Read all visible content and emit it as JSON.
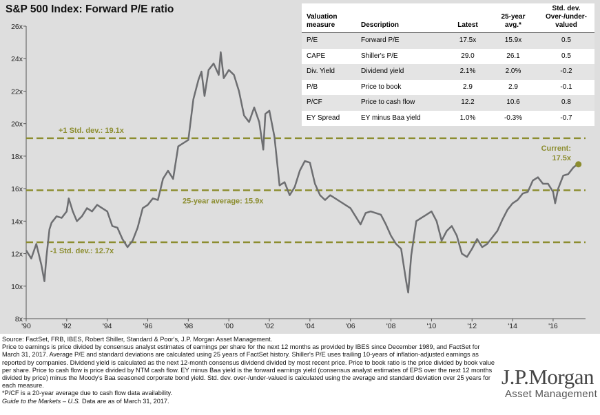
{
  "chart_data": {
    "type": "line",
    "title": "S&P 500 Index: Forward P/E ratio",
    "ylim": [
      8,
      26
    ],
    "xlim": [
      1990,
      2017.6
    ],
    "y_ticks": [
      "8x",
      "10x",
      "12x",
      "14x",
      "16x",
      "18x",
      "20x",
      "22x",
      "24x",
      "26x"
    ],
    "x_ticks": [
      "'90",
      "'92",
      "'94",
      "'96",
      "'98",
      "'00",
      "'02",
      "'04",
      "'06",
      "'08",
      "'10",
      "'12",
      "'14",
      "'16"
    ],
    "series": [
      {
        "color": "#6d6e71",
        "x": [
          1990.0,
          1990.25,
          1990.5,
          1990.75,
          1990.9,
          1991.0,
          1991.15,
          1991.25,
          1991.5,
          1991.75,
          1992.0,
          1992.1,
          1992.3,
          1992.5,
          1992.75,
          1993.0,
          1993.25,
          1993.5,
          1993.75,
          1994.0,
          1994.25,
          1994.5,
          1994.75,
          1995.0,
          1995.25,
          1995.5,
          1995.75,
          1996.0,
          1996.25,
          1996.5,
          1996.75,
          1997.0,
          1997.25,
          1997.5,
          1997.75,
          1998.0,
          1998.25,
          1998.5,
          1998.65,
          1998.8,
          1999.0,
          1999.25,
          1999.5,
          1999.6,
          1999.75,
          2000.0,
          2000.25,
          2000.5,
          2000.75,
          2001.0,
          2001.25,
          2001.5,
          2001.7,
          2001.8,
          2002.0,
          2002.25,
          2002.5,
          2002.75,
          2003.0,
          2003.25,
          2003.5,
          2003.75,
          2004.0,
          2004.25,
          2004.5,
          2004.75,
          2005.0,
          2005.5,
          2006.0,
          2006.25,
          2006.5,
          2006.75,
          2007.0,
          2007.5,
          2007.75,
          2008.0,
          2008.25,
          2008.5,
          2008.75,
          2008.85,
          2009.0,
          2009.25,
          2009.5,
          2009.75,
          2010.0,
          2010.25,
          2010.5,
          2010.75,
          2011.0,
          2011.25,
          2011.5,
          2011.75,
          2012.0,
          2012.25,
          2012.5,
          2012.75,
          2013.0,
          2013.25,
          2013.5,
          2013.75,
          2014.0,
          2014.25,
          2014.5,
          2014.75,
          2015.0,
          2015.25,
          2015.5,
          2015.75,
          2016.0,
          2016.1,
          2016.25,
          2016.5,
          2016.75,
          2017.0,
          2017.2
        ],
        "values": [
          12.2,
          11.7,
          12.6,
          11.3,
          10.3,
          11.8,
          13.5,
          13.9,
          14.3,
          14.2,
          14.6,
          15.4,
          14.6,
          14.0,
          14.3,
          14.8,
          14.6,
          15.0,
          14.8,
          14.6,
          13.7,
          13.6,
          12.9,
          12.4,
          12.8,
          13.6,
          14.8,
          15.0,
          15.4,
          15.3,
          16.6,
          17.1,
          16.6,
          18.6,
          18.8,
          19.0,
          21.5,
          22.7,
          23.2,
          21.7,
          23.3,
          23.7,
          23.0,
          24.4,
          22.8,
          23.3,
          23.0,
          22.0,
          20.5,
          20.1,
          21.0,
          20.1,
          18.4,
          20.6,
          20.8,
          19.2,
          16.2,
          16.4,
          15.6,
          16.1,
          17.1,
          17.7,
          17.6,
          16.3,
          15.6,
          15.3,
          15.6,
          15.2,
          14.8,
          14.3,
          13.8,
          14.5,
          14.6,
          14.4,
          13.8,
          13.1,
          12.6,
          12.3,
          10.3,
          9.6,
          11.9,
          14.0,
          14.2,
          14.4,
          14.6,
          14.0,
          12.8,
          13.4,
          13.7,
          13.1,
          12.0,
          11.8,
          12.3,
          12.9,
          12.4,
          12.6,
          13.0,
          13.4,
          14.1,
          14.7,
          15.1,
          15.3,
          15.7,
          15.8,
          16.5,
          16.7,
          16.3,
          16.3,
          15.8,
          15.1,
          16.0,
          16.8,
          16.9,
          17.3,
          17.5
        ]
      }
    ],
    "reference_lines": [
      {
        "value": 19.1,
        "label": "+1 Std. dev.: 19.1x",
        "color": "#8c8d2f"
      },
      {
        "value": 15.9,
        "label": "25-year average: 15.9x",
        "color": "#8c8d2f"
      },
      {
        "value": 12.7,
        "label": "-1 Std. dev.: 12.7x",
        "color": "#8c8d2f"
      }
    ],
    "current": {
      "x": 2017.25,
      "value": 17.5,
      "label_line1": "Current:",
      "label_line2": "17.5x",
      "color": "#8c8d2f"
    },
    "grid": false
  },
  "table": {
    "headers": {
      "measure": "Valuation measure",
      "description": "Description",
      "latest": "Latest",
      "avg": "25-year avg.*",
      "std": "Std. dev. Over-/under-valued"
    },
    "rows": [
      {
        "measure": "P/E",
        "description": "Forward P/E",
        "latest": "17.5x",
        "avg": "15.9x",
        "std": "0.5"
      },
      {
        "measure": "CAPE",
        "description": "Shiller's P/E",
        "latest": "29.0",
        "avg": "26.1",
        "std": "0.5"
      },
      {
        "measure": "Div. Yield",
        "description": "Dividend yield",
        "latest": "2.1%",
        "avg": "2.0%",
        "std": "-0.2"
      },
      {
        "measure": "P/B",
        "description": "Price to book",
        "latest": "2.9",
        "avg": "2.9",
        "std": "-0.1"
      },
      {
        "measure": "P/CF",
        "description": "Price to cash flow",
        "latest": "12.2",
        "avg": "10.6",
        "std": "0.8"
      },
      {
        "measure": "EY Spread",
        "description": "EY minus Baa yield",
        "latest": "1.0%",
        "avg": "-0.3%",
        "std": "-0.7"
      }
    ]
  },
  "footnote": {
    "source": "Source: FactSet, FRB, IBES, Robert Shiller, Standard & Poor's, J.P. Morgan Asset Management.",
    "body": "Price to earnings is price divided by consensus analyst estimates of earnings per share for the next 12 months as provided by IBES since December 1989, and FactSet for March 31, 2017. Average P/E and standard deviations are calculated using 25 years of FactSet history. Shiller's P/E uses trailing 10-years of inflation-adjusted earnings as reported by companies. Dividend yield is calculated as the next 12-month consensus dividend divided by most recent price. Price to book ratio is the price divided by book value per share. Price to cash flow is price divided by NTM cash flow. EY minus Baa yield is the forward earnings yield (consensus analyst estimates of EPS over the next 12 months divided by price) minus the Moody's Baa seasoned corporate bond yield. Std. dev. over-/under-valued is calculated using the average and standard deviation over 25 years for each measure.",
    "pcf_note": "*P/CF is a 20-year average due to cash flow data availability.",
    "guide": "Guide to the Markets – U.S.",
    "data_as_of": "Data are as of March 31, 2017."
  },
  "logo": {
    "top": "J.P.Morgan",
    "bottom": "Asset Management"
  }
}
